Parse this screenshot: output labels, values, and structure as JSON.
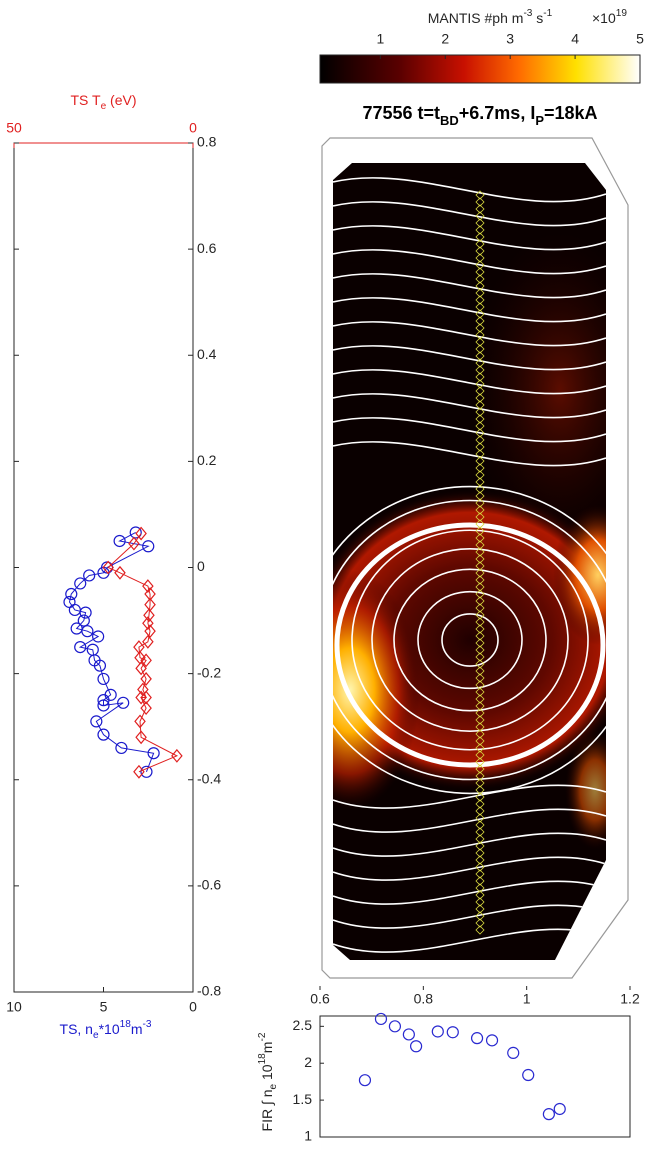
{
  "chart_data": [
    {
      "type": "profile",
      "xlabel": [
        "TS, n",
        "e",
        "*10",
        "18",
        "m",
        "-3"
      ],
      "x2label": [
        "TS T",
        "e",
        " (eV)"
      ],
      "xlim": [
        10,
        0
      ],
      "xticks": [
        10,
        5,
        0
      ],
      "x2lim": [
        50,
        0
      ],
      "x2ticks": [
        50,
        0
      ],
      "ylim": [
        -0.8,
        0.8
      ],
      "yticks": [
        0.8,
        0.6,
        0.4,
        0.2,
        0,
        -0.2,
        -0.4,
        -0.6,
        -0.8
      ],
      "series": [
        {
          "color": "#1a1acc",
          "marker": "circle",
          "line": true,
          "x": [
            3.2,
            4.1,
            2.5,
            4.8,
            5.0,
            5.8,
            6.3,
            6.8,
            6.9,
            6.6,
            6.0,
            6.1,
            6.5,
            5.9,
            5.3,
            6.3,
            5.6,
            5.5,
            5.2,
            5.0,
            4.6,
            5.0,
            5.0,
            3.9,
            5.4,
            5.0,
            4.0,
            2.2,
            2.6
          ],
          "y": [
            0.066,
            0.05,
            0.04,
            0.0,
            -0.01,
            -0.015,
            -0.03,
            -0.05,
            -0.065,
            -0.08,
            -0.085,
            -0.1,
            -0.115,
            -0.12,
            -0.13,
            -0.15,
            -0.155,
            -0.175,
            -0.185,
            -0.21,
            -0.24,
            -0.25,
            -0.26,
            -0.255,
            -0.29,
            -0.315,
            -0.34,
            -0.35,
            -0.385
          ]
        },
        {
          "color": "#e02020",
          "marker": "diamond",
          "axis": "x2",
          "line": true,
          "x": [
            14.5,
            16.5,
            23.7,
            20.4,
            12.6,
            12.0,
            12.0,
            12.3,
            12.6,
            12.0,
            12.6,
            15.1,
            14.8,
            13.1,
            14.5,
            13.1,
            14.0,
            13.1,
            14.5,
            13.1,
            14.8,
            14.5,
            4.5,
            15.1
          ],
          "y": [
            0.064,
            0.045,
            0.0,
            -0.01,
            -0.035,
            -0.05,
            -0.07,
            -0.09,
            -0.105,
            -0.12,
            -0.14,
            -0.15,
            -0.17,
            -0.175,
            -0.19,
            -0.21,
            -0.23,
            -0.245,
            -0.245,
            -0.265,
            -0.29,
            -0.32,
            -0.355,
            -0.385
          ]
        }
      ]
    },
    {
      "type": "image",
      "title": [
        "77556 t=t",
        "BD",
        "+6.7ms, I",
        "P",
        "=18kA"
      ],
      "colorbar_label": [
        "MANTIS #ph m",
        "-3",
        " s",
        "-1"
      ],
      "colorbar_scale": [
        "×10",
        "19"
      ],
      "clim": [
        0.07,
        5
      ],
      "cticks": [
        1,
        2,
        3,
        4,
        5
      ],
      "xlim": [
        0.6,
        1.2
      ],
      "xticks": [
        0.6,
        0.8,
        1,
        1.2
      ]
    },
    {
      "type": "scatter",
      "ylabel": [
        "FIR ∫ n",
        "e",
        " 10",
        "18",
        "m",
        "-2"
      ],
      "xlim": [
        0.6,
        1.2
      ],
      "ylim": [
        1,
        2.64
      ],
      "yticks": [
        1,
        1.5,
        2,
        2.5
      ],
      "color": "#2a2ad0",
      "marker": "circle",
      "x": [
        0.687,
        0.718,
        0.745,
        0.772,
        0.786,
        0.828,
        0.857,
        0.904,
        0.933,
        0.974,
        1.003,
        1.043,
        1.064
      ],
      "values": [
        1.77,
        2.6,
        2.5,
        2.39,
        2.23,
        2.43,
        2.42,
        2.34,
        2.31,
        2.14,
        1.84,
        1.31,
        1.38
      ]
    }
  ]
}
